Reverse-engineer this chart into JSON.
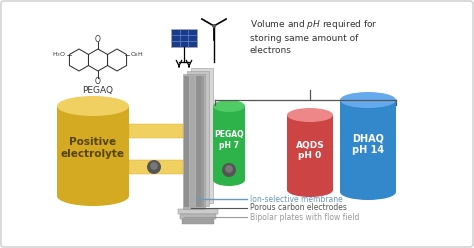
{
  "bg_color": "#ffffff",
  "border_color": "#cccccc",
  "annotation_text1": "Ion-selective membrane",
  "annotation_text2": "Porous carbon electrodes",
  "annotation_text3": "Bipolar plates with flow field",
  "annotation_color1": "#6699bb",
  "annotation_color2": "#555555",
  "annotation_color3": "#999999",
  "pegaq_label": "PEGAQ\npH 7",
  "aqds_label": "AQDS\npH 0",
  "dhaq_label": "DHAQ\npH 14",
  "pos_elec_label": "Positive\nelectrolyte",
  "pegaq_mol_label": "PEGAQ",
  "volume_text": "Volume and pH required for\nstoring same amount of\nelectrons",
  "cylinder_green": "#2db34a",
  "cylinder_green_top": "#50cc66",
  "cylinder_pink": "#cc4444",
  "cylinder_pink_top": "#ee8888",
  "cylinder_blue": "#3388cc",
  "cylinder_blue_top": "#66aaee",
  "cylinder_yellow_body": "#d4aa22",
  "cylinder_yellow_top": "#f0d060",
  "plate_light": "#d0d0d0",
  "plate_mid": "#b8b8b8",
  "plate_dark": "#909090",
  "green_pipe_color": "#2db34a",
  "green_pipe_top": "#50cc66",
  "yellow_pipe_color": "#f0d060",
  "yellow_pipe_edge": "#d4aa22",
  "connector_dark": "#555555",
  "connector_mid": "#777777",
  "brace_color": "#555555",
  "text_color": "#333333",
  "solar_color": "#1a3a8a",
  "solar_grid": "#6688cc"
}
